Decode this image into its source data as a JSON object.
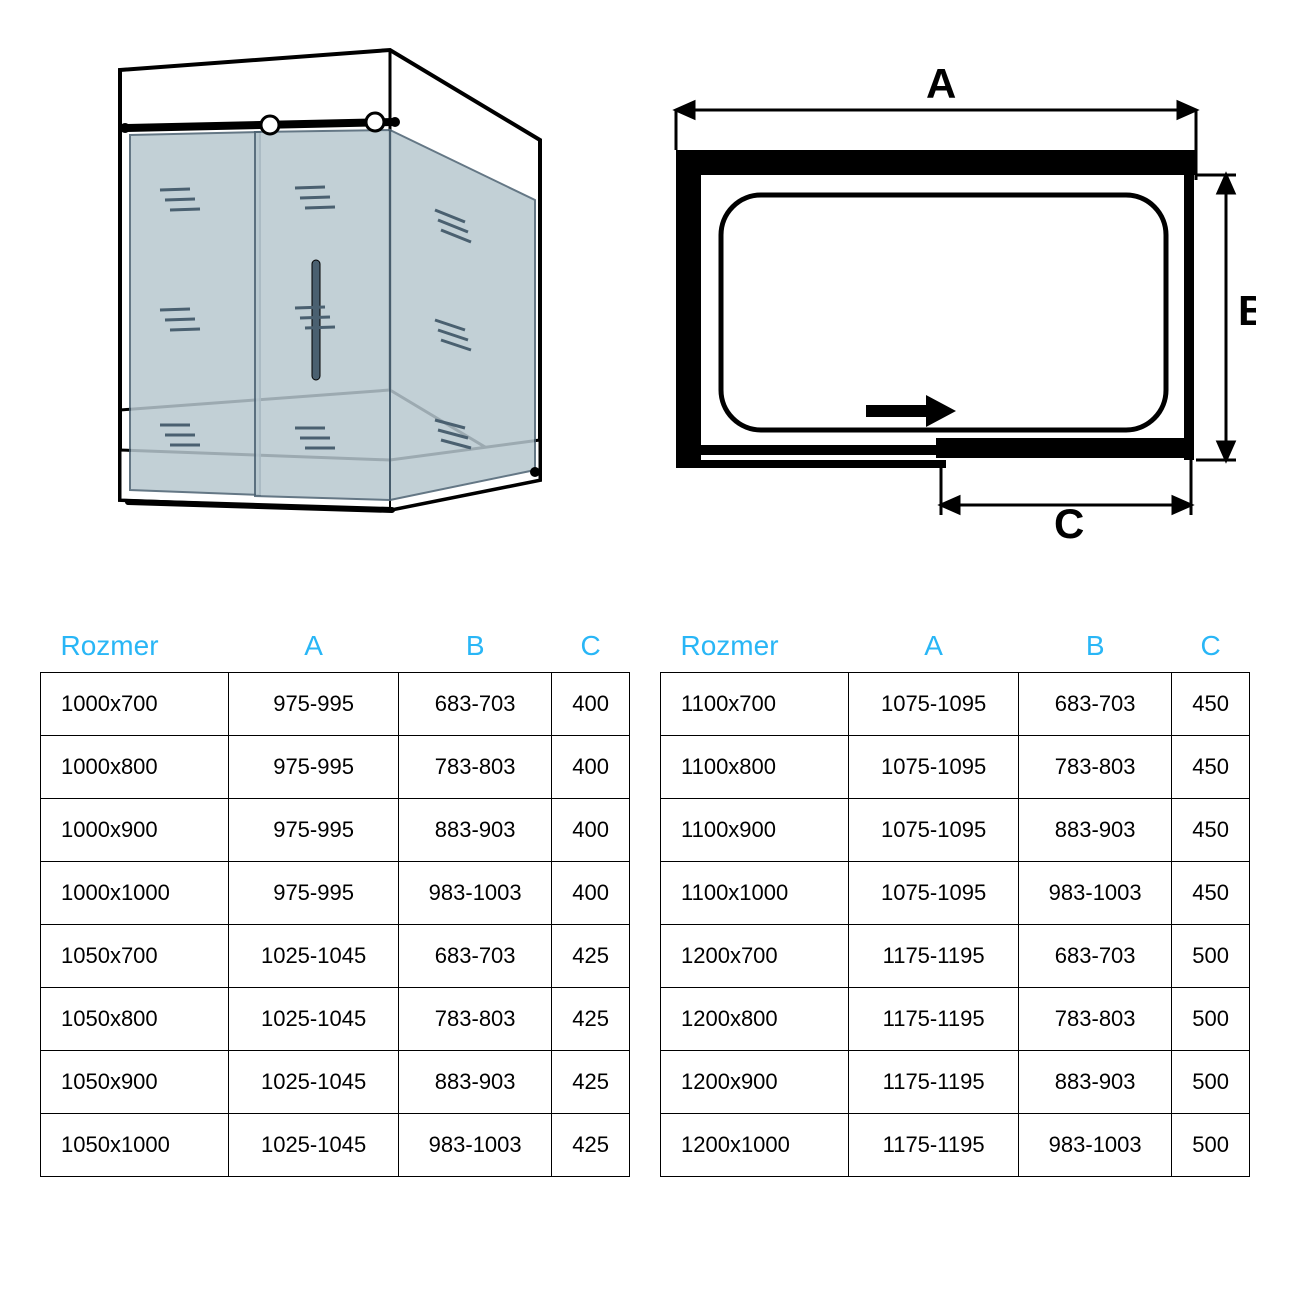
{
  "diagram": {
    "labels": {
      "A": "A",
      "B": "B",
      "C": "C"
    },
    "colors": {
      "outline": "#000000",
      "glass_fill": "#b8c8d0",
      "glass_stroke": "#4a6070",
      "header": "#29b6f6",
      "cell_border": "#000000",
      "cell_text": "#000000",
      "background": "#ffffff"
    },
    "line_width_thick": 14,
    "line_width_thin": 2
  },
  "table_left": {
    "headers": [
      "Rozmer",
      "A",
      "B",
      "C"
    ],
    "rows": [
      [
        "1000x700",
        "975-995",
        "683-703",
        "400"
      ],
      [
        "1000x800",
        "975-995",
        "783-803",
        "400"
      ],
      [
        "1000x900",
        "975-995",
        "883-903",
        "400"
      ],
      [
        "1000x1000",
        "975-995",
        "983-1003",
        "400"
      ],
      [
        "1050x700",
        "1025-1045",
        "683-703",
        "425"
      ],
      [
        "1050x800",
        "1025-1045",
        "783-803",
        "425"
      ],
      [
        "1050x900",
        "1025-1045",
        "883-903",
        "425"
      ],
      [
        "1050x1000",
        "1025-1045",
        "983-1003",
        "425"
      ]
    ]
  },
  "table_right": {
    "headers": [
      "Rozmer",
      "A",
      "B",
      "C"
    ],
    "rows": [
      [
        "1100x700",
        "1075-1095",
        "683-703",
        "450"
      ],
      [
        "1100x800",
        "1075-1095",
        "783-803",
        "450"
      ],
      [
        "1100x900",
        "1075-1095",
        "883-903",
        "450"
      ],
      [
        "1100x1000",
        "1075-1095",
        "983-1003",
        "450"
      ],
      [
        "1200x700",
        "1175-1195",
        "683-703",
        "500"
      ],
      [
        "1200x800",
        "1175-1195",
        "783-803",
        "500"
      ],
      [
        "1200x900",
        "1175-1195",
        "883-903",
        "500"
      ],
      [
        "1200x1000",
        "1175-1195",
        "983-1003",
        "500"
      ]
    ]
  }
}
